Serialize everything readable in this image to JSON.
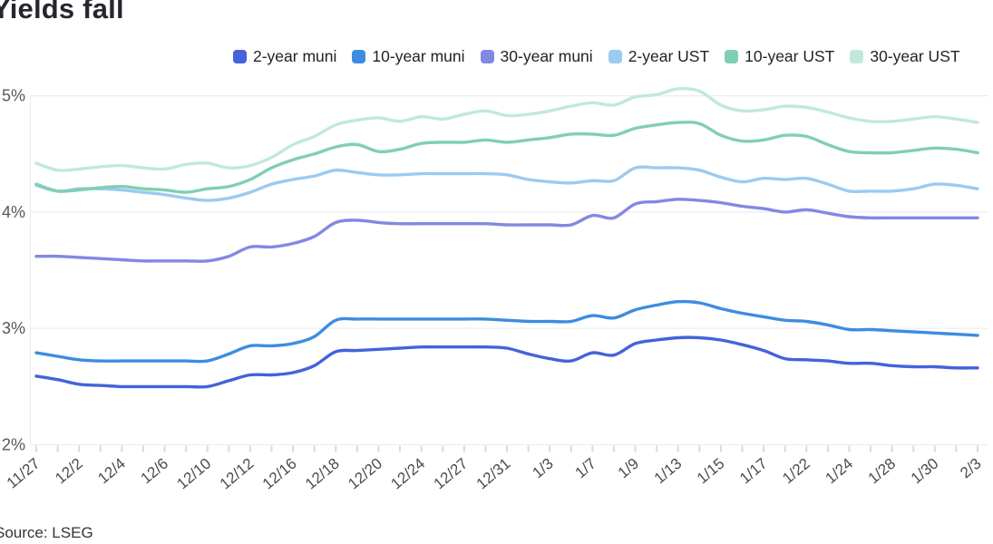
{
  "page": {
    "title": "Yields fall",
    "source": "Source: LSEG"
  },
  "legend": {
    "items": [
      {
        "label": "2-year muni",
        "color": "#4462da"
      },
      {
        "label": "10-year muni",
        "color": "#3d8ce0"
      },
      {
        "label": "30-year muni",
        "color": "#8289e2"
      },
      {
        "label": "2-year UST",
        "color": "#9ccaf1"
      },
      {
        "label": "10-year UST",
        "color": "#80cfb3"
      },
      {
        "label": "30-year UST",
        "color": "#c0e9da"
      }
    ]
  },
  "chart_data": {
    "type": "line",
    "title": "Yields fall",
    "xlabel": "",
    "ylabel": "",
    "ylim": [
      2,
      5
    ],
    "y_ticks": [
      {
        "value": 2,
        "label": "2%"
      },
      {
        "value": 3,
        "label": "3%"
      },
      {
        "value": 4,
        "label": "4%"
      },
      {
        "value": 5,
        "label": "5%"
      }
    ],
    "grid": true,
    "legend_position": "top",
    "x_label_every": 2,
    "x": [
      "11/27",
      "11/29",
      "12/2",
      "12/3",
      "12/4",
      "12/5",
      "12/6",
      "12/9",
      "12/10",
      "12/11",
      "12/12",
      "12/13",
      "12/16",
      "12/17",
      "12/18",
      "12/19",
      "12/20",
      "12/23",
      "12/24",
      "12/26",
      "12/27",
      "12/30",
      "12/31",
      "1/2",
      "1/3",
      "1/6",
      "1/7",
      "1/8",
      "1/9",
      "1/10",
      "1/13",
      "1/14",
      "1/15",
      "1/16",
      "1/17",
      "1/21",
      "1/22",
      "1/23",
      "1/24",
      "1/27",
      "1/28",
      "1/29",
      "1/30",
      "1/31",
      "2/3"
    ],
    "series": [
      {
        "name": "2-year muni",
        "color": "#4462da",
        "z": 6,
        "values": [
          2.59,
          2.56,
          2.52,
          2.51,
          2.5,
          2.5,
          2.5,
          2.5,
          2.5,
          2.55,
          2.6,
          2.6,
          2.62,
          2.68,
          2.8,
          2.81,
          2.82,
          2.83,
          2.84,
          2.84,
          2.84,
          2.84,
          2.83,
          2.78,
          2.74,
          2.72,
          2.79,
          2.77,
          2.87,
          2.9,
          2.92,
          2.92,
          2.9,
          2.86,
          2.81,
          2.74,
          2.73,
          2.72,
          2.7,
          2.7,
          2.68,
          2.67,
          2.67,
          2.66,
          2.66
        ]
      },
      {
        "name": "10-year muni",
        "color": "#3d8ce0",
        "z": 5,
        "values": [
          2.79,
          2.76,
          2.73,
          2.72,
          2.72,
          2.72,
          2.72,
          2.72,
          2.72,
          2.78,
          2.85,
          2.85,
          2.87,
          2.93,
          3.07,
          3.08,
          3.08,
          3.08,
          3.08,
          3.08,
          3.08,
          3.08,
          3.07,
          3.06,
          3.06,
          3.06,
          3.11,
          3.09,
          3.16,
          3.2,
          3.23,
          3.22,
          3.17,
          3.13,
          3.1,
          3.07,
          3.06,
          3.03,
          2.99,
          2.99,
          2.98,
          2.97,
          2.96,
          2.95,
          2.94
        ]
      },
      {
        "name": "30-year muni",
        "color": "#8289e2",
        "z": 4,
        "values": [
          3.62,
          3.62,
          3.61,
          3.6,
          3.59,
          3.58,
          3.58,
          3.58,
          3.58,
          3.62,
          3.7,
          3.7,
          3.73,
          3.79,
          3.91,
          3.93,
          3.91,
          3.9,
          3.9,
          3.9,
          3.9,
          3.9,
          3.89,
          3.89,
          3.89,
          3.89,
          3.97,
          3.95,
          4.07,
          4.09,
          4.11,
          4.1,
          4.08,
          4.05,
          4.03,
          4.0,
          4.02,
          3.99,
          3.96,
          3.95,
          3.95,
          3.95,
          3.95,
          3.95,
          3.95
        ]
      },
      {
        "name": "2-year UST",
        "color": "#9ccaf1",
        "z": 2,
        "values": [
          4.23,
          4.18,
          4.2,
          4.2,
          4.19,
          4.17,
          4.15,
          4.12,
          4.1,
          4.12,
          4.17,
          4.24,
          4.28,
          4.31,
          4.36,
          4.34,
          4.32,
          4.32,
          4.33,
          4.33,
          4.33,
          4.33,
          4.32,
          4.28,
          4.26,
          4.25,
          4.27,
          4.27,
          4.38,
          4.38,
          4.38,
          4.36,
          4.3,
          4.26,
          4.29,
          4.28,
          4.29,
          4.24,
          4.18,
          4.18,
          4.18,
          4.2,
          4.24,
          4.23,
          4.2
        ]
      },
      {
        "name": "10-year UST",
        "color": "#80cfb3",
        "z": 3,
        "values": [
          4.24,
          4.18,
          4.19,
          4.21,
          4.22,
          4.2,
          4.19,
          4.17,
          4.2,
          4.22,
          4.28,
          4.38,
          4.45,
          4.5,
          4.56,
          4.58,
          4.52,
          4.54,
          4.59,
          4.6,
          4.6,
          4.62,
          4.6,
          4.62,
          4.64,
          4.67,
          4.67,
          4.66,
          4.72,
          4.75,
          4.77,
          4.76,
          4.66,
          4.61,
          4.62,
          4.66,
          4.65,
          4.58,
          4.52,
          4.51,
          4.51,
          4.53,
          4.55,
          4.54,
          4.51
        ]
      },
      {
        "name": "30-year UST",
        "color": "#c0e9da",
        "z": 1,
        "values": [
          4.42,
          4.36,
          4.37,
          4.39,
          4.4,
          4.38,
          4.37,
          4.41,
          4.42,
          4.38,
          4.4,
          4.47,
          4.58,
          4.65,
          4.75,
          4.79,
          4.81,
          4.78,
          4.82,
          4.8,
          4.84,
          4.87,
          4.83,
          4.84,
          4.87,
          4.91,
          4.94,
          4.92,
          4.99,
          5.01,
          5.06,
          5.04,
          4.92,
          4.87,
          4.88,
          4.91,
          4.9,
          4.86,
          4.81,
          4.78,
          4.78,
          4.8,
          4.82,
          4.8,
          4.77
        ]
      }
    ]
  }
}
